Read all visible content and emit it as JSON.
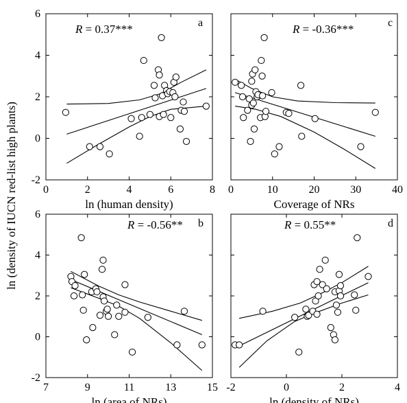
{
  "figure": {
    "ylabel": "ln (density of IUCN red-list high plants)"
  },
  "chart_data": [
    {
      "type": "scatter",
      "letter": "a",
      "r_label": "R",
      "r_value": " = 0.37***",
      "xlabel": "ln (human density)",
      "xlim": [
        0,
        8
      ],
      "ylim": [
        -2,
        6
      ],
      "xticks": [
        0,
        2,
        4,
        6,
        8
      ],
      "yticks": [
        -2,
        0,
        2,
        4,
        6
      ],
      "x_tick_labels": [
        "0",
        "2",
        "4",
        "6",
        "8"
      ],
      "y_tick_labels": [
        "-2",
        "0",
        "2",
        "4",
        "6"
      ],
      "points": [
        {
          "x": 0.95,
          "y": 1.25
        },
        {
          "x": 2.1,
          "y": -0.4
        },
        {
          "x": 2.6,
          "y": -0.4
        },
        {
          "x": 3.05,
          "y": -0.75
        },
        {
          "x": 4.1,
          "y": 0.95
        },
        {
          "x": 4.5,
          "y": 0.1
        },
        {
          "x": 4.6,
          "y": 1.0
        },
        {
          "x": 4.7,
          "y": 3.75
        },
        {
          "x": 5.0,
          "y": 1.15
        },
        {
          "x": 5.2,
          "y": 2.55
        },
        {
          "x": 5.25,
          "y": 1.95
        },
        {
          "x": 5.4,
          "y": 3.3
        },
        {
          "x": 5.45,
          "y": 3.05
        },
        {
          "x": 5.45,
          "y": 1.05
        },
        {
          "x": 5.55,
          "y": 4.85
        },
        {
          "x": 5.6,
          "y": 2.05
        },
        {
          "x": 5.65,
          "y": 1.15
        },
        {
          "x": 5.7,
          "y": 2.55
        },
        {
          "x": 5.8,
          "y": 2.3
        },
        {
          "x": 5.85,
          "y": 2.15
        },
        {
          "x": 5.95,
          "y": 2.25
        },
        {
          "x": 6.0,
          "y": 1.0
        },
        {
          "x": 6.1,
          "y": 2.2
        },
        {
          "x": 6.15,
          "y": 2.7
        },
        {
          "x": 6.2,
          "y": 2.0
        },
        {
          "x": 6.25,
          "y": 2.95
        },
        {
          "x": 6.45,
          "y": 0.45
        },
        {
          "x": 6.5,
          "y": 1.35
        },
        {
          "x": 6.6,
          "y": 1.75
        },
        {
          "x": 6.65,
          "y": 1.3
        },
        {
          "x": 6.75,
          "y": -0.15
        },
        {
          "x": 7.7,
          "y": 1.55
        }
      ],
      "fit": [
        {
          "x": 1.0,
          "y": 0.2
        },
        {
          "x": 7.7,
          "y": 2.4
        }
      ],
      "ci_upper": [
        {
          "x": 1.0,
          "y": 1.65
        },
        {
          "x": 3.0,
          "y": 1.68
        },
        {
          "x": 4.5,
          "y": 1.85
        },
        {
          "x": 5.5,
          "y": 2.15
        },
        {
          "x": 6.5,
          "y": 2.7
        },
        {
          "x": 7.7,
          "y": 3.3
        }
      ],
      "ci_lower": [
        {
          "x": 1.0,
          "y": -1.2
        },
        {
          "x": 2.5,
          "y": -0.3
        },
        {
          "x": 4.0,
          "y": 0.55
        },
        {
          "x": 5.0,
          "y": 1.05
        },
        {
          "x": 6.0,
          "y": 1.4
        },
        {
          "x": 7.7,
          "y": 1.55
        }
      ]
    },
    {
      "type": "scatter",
      "letter": "c",
      "r_label": "R",
      "r_value": " = -0.36***",
      "xlabel": "Coverage of NRs",
      "xlim": [
        0,
        40
      ],
      "ylim": [
        -2,
        6
      ],
      "xticks": [
        0,
        10,
        20,
        30,
        40
      ],
      "yticks": [
        -2,
        0,
        2,
        4,
        6
      ],
      "x_tick_labels": [
        "0",
        "10",
        "20",
        "30",
        "40"
      ],
      "y_tick_labels": [],
      "points": [
        {
          "x": 1.0,
          "y": 2.7
        },
        {
          "x": 2.5,
          "y": 2.55
        },
        {
          "x": 2.8,
          "y": 2.0
        },
        {
          "x": 3.0,
          "y": 1.0
        },
        {
          "x": 4.0,
          "y": 1.35
        },
        {
          "x": 4.4,
          "y": 1.9
        },
        {
          "x": 4.7,
          "y": -0.15
        },
        {
          "x": 5.0,
          "y": 1.6
        },
        {
          "x": 5.0,
          "y": 2.75
        },
        {
          "x": 5.2,
          "y": 3.1
        },
        {
          "x": 5.4,
          "y": 1.7
        },
        {
          "x": 5.6,
          "y": 0.45
        },
        {
          "x": 5.8,
          "y": 3.3
        },
        {
          "x": 6.0,
          "y": 2.25
        },
        {
          "x": 6.3,
          "y": 2.0
        },
        {
          "x": 6.5,
          "y": 2.1
        },
        {
          "x": 7.1,
          "y": 1.0
        },
        {
          "x": 7.3,
          "y": 3.75
        },
        {
          "x": 7.5,
          "y": 3.0
        },
        {
          "x": 7.6,
          "y": 2.05
        },
        {
          "x": 8.0,
          "y": 4.85
        },
        {
          "x": 8.2,
          "y": 1.05
        },
        {
          "x": 8.4,
          "y": 1.3
        },
        {
          "x": 9.8,
          "y": 2.2
        },
        {
          "x": 10.5,
          "y": -0.75
        },
        {
          "x": 11.6,
          "y": -0.4
        },
        {
          "x": 13.3,
          "y": 1.25
        },
        {
          "x": 13.9,
          "y": 1.2
        },
        {
          "x": 16.8,
          "y": 2.55
        },
        {
          "x": 17.0,
          "y": 0.1
        },
        {
          "x": 20.2,
          "y": 0.95
        },
        {
          "x": 31.2,
          "y": -0.4
        },
        {
          "x": 34.7,
          "y": 1.25
        }
      ],
      "fit": [
        {
          "x": 1.0,
          "y": 2.2
        },
        {
          "x": 34.7,
          "y": 0.1
        }
      ],
      "ci_upper": [
        {
          "x": 1.0,
          "y": 2.85
        },
        {
          "x": 5.0,
          "y": 2.4
        },
        {
          "x": 10.0,
          "y": 2.0
        },
        {
          "x": 16.0,
          "y": 1.8
        },
        {
          "x": 25.0,
          "y": 1.72
        },
        {
          "x": 34.7,
          "y": 1.7
        }
      ],
      "ci_lower": [
        {
          "x": 1.0,
          "y": 1.55
        },
        {
          "x": 6.0,
          "y": 1.4
        },
        {
          "x": 12.0,
          "y": 1.05
        },
        {
          "x": 20.0,
          "y": 0.3
        },
        {
          "x": 27.0,
          "y": -0.5
        },
        {
          "x": 34.7,
          "y": -1.45
        }
      ]
    },
    {
      "type": "scatter",
      "letter": "b",
      "r_label": "R",
      "r_value": " = -0.56**",
      "xlabel": "ln (area of NRs)",
      "xlim": [
        7,
        15
      ],
      "ylim": [
        -2,
        6
      ],
      "xticks": [
        7,
        9,
        11,
        13,
        15
      ],
      "yticks": [
        -2,
        0,
        2,
        4,
        6
      ],
      "x_tick_labels": [
        "7",
        "9",
        "11",
        "13",
        "15"
      ],
      "y_tick_labels": [
        "-2",
        "0",
        "2",
        "4",
        "6"
      ],
      "points": [
        {
          "x": 8.2,
          "y": 2.95
        },
        {
          "x": 8.25,
          "y": 2.7
        },
        {
          "x": 8.35,
          "y": 2.0
        },
        {
          "x": 8.4,
          "y": 2.5
        },
        {
          "x": 8.7,
          "y": 4.85
        },
        {
          "x": 8.75,
          "y": 2.05
        },
        {
          "x": 8.8,
          "y": 1.3
        },
        {
          "x": 8.85,
          "y": 3.05
        },
        {
          "x": 8.95,
          "y": -0.15
        },
        {
          "x": 9.2,
          "y": 2.2
        },
        {
          "x": 9.25,
          "y": 0.45
        },
        {
          "x": 9.4,
          "y": 2.35
        },
        {
          "x": 9.45,
          "y": 2.2
        },
        {
          "x": 9.6,
          "y": 1.05
        },
        {
          "x": 9.7,
          "y": 3.3
        },
        {
          "x": 9.75,
          "y": 3.75
        },
        {
          "x": 9.75,
          "y": 1.95
        },
        {
          "x": 9.8,
          "y": 1.75
        },
        {
          "x": 9.9,
          "y": 1.25
        },
        {
          "x": 9.95,
          "y": 1.35
        },
        {
          "x": 10.0,
          "y": 1.0
        },
        {
          "x": 10.3,
          "y": 0.1
        },
        {
          "x": 10.4,
          "y": 1.55
        },
        {
          "x": 10.5,
          "y": 1.0
        },
        {
          "x": 10.8,
          "y": 2.55
        },
        {
          "x": 10.8,
          "y": 1.2
        },
        {
          "x": 11.15,
          "y": -0.75
        },
        {
          "x": 11.9,
          "y": 0.95
        },
        {
          "x": 13.3,
          "y": -0.4
        },
        {
          "x": 13.65,
          "y": 1.25
        },
        {
          "x": 14.5,
          "y": -0.4
        }
      ],
      "fit": [
        {
          "x": 8.2,
          "y": 2.8
        },
        {
          "x": 14.5,
          "y": 0.1
        }
      ],
      "ci_upper": [
        {
          "x": 8.2,
          "y": 3.2
        },
        {
          "x": 9.5,
          "y": 2.5
        },
        {
          "x": 10.5,
          "y": 2.05
        },
        {
          "x": 11.5,
          "y": 1.7
        },
        {
          "x": 13.0,
          "y": 1.25
        },
        {
          "x": 14.5,
          "y": 0.8
        }
      ],
      "ci_lower": [
        {
          "x": 8.2,
          "y": 2.4
        },
        {
          "x": 9.5,
          "y": 1.9
        },
        {
          "x": 10.5,
          "y": 1.5
        },
        {
          "x": 11.5,
          "y": 0.9
        },
        {
          "x": 13.0,
          "y": -0.3
        },
        {
          "x": 14.5,
          "y": -1.65
        }
      ]
    },
    {
      "type": "scatter",
      "letter": "d",
      "r_label": "R",
      "r_value": " = 0.55**",
      "xlabel": "ln (density of NRs)",
      "xlim": [
        -2,
        4
      ],
      "ylim": [
        -2,
        6
      ],
      "xticks": [
        -2,
        0,
        2,
        4
      ],
      "yticks": [
        -2,
        0,
        2,
        4,
        6
      ],
      "x_tick_labels": [
        "-2",
        "0",
        "2",
        "4"
      ],
      "y_tick_labels": [],
      "points": [
        {
          "x": -1.85,
          "y": -0.4
        },
        {
          "x": -1.7,
          "y": -0.4
        },
        {
          "x": -0.85,
          "y": 1.25
        },
        {
          "x": 0.3,
          "y": 0.95
        },
        {
          "x": 0.45,
          "y": -0.75
        },
        {
          "x": 0.7,
          "y": 1.35
        },
        {
          "x": 0.75,
          "y": 1.0
        },
        {
          "x": 0.8,
          "y": 1.05
        },
        {
          "x": 0.95,
          "y": 1.25
        },
        {
          "x": 1.0,
          "y": 2.55
        },
        {
          "x": 1.05,
          "y": 1.75
        },
        {
          "x": 1.1,
          "y": 2.7
        },
        {
          "x": 1.1,
          "y": 1.1
        },
        {
          "x": 1.15,
          "y": 2.0
        },
        {
          "x": 1.2,
          "y": 3.3
        },
        {
          "x": 1.3,
          "y": 2.55
        },
        {
          "x": 1.4,
          "y": 3.75
        },
        {
          "x": 1.45,
          "y": 2.35
        },
        {
          "x": 1.6,
          "y": 0.45
        },
        {
          "x": 1.7,
          "y": 0.1
        },
        {
          "x": 1.75,
          "y": 2.2
        },
        {
          "x": 1.75,
          "y": -0.15
        },
        {
          "x": 1.8,
          "y": 1.55
        },
        {
          "x": 1.85,
          "y": 1.2
        },
        {
          "x": 1.9,
          "y": 2.25
        },
        {
          "x": 1.9,
          "y": 3.05
        },
        {
          "x": 1.95,
          "y": 2.0
        },
        {
          "x": 1.95,
          "y": 2.5
        },
        {
          "x": 2.45,
          "y": 2.05
        },
        {
          "x": 2.5,
          "y": 1.3
        },
        {
          "x": 2.55,
          "y": 4.85
        },
        {
          "x": 2.95,
          "y": 2.95
        }
      ],
      "fit": [
        {
          "x": -1.7,
          "y": -0.45
        },
        {
          "x": 2.95,
          "y": 2.65
        }
      ],
      "ci_upper": [
        {
          "x": -1.7,
          "y": 0.9
        },
        {
          "x": -0.5,
          "y": 1.25
        },
        {
          "x": 0.5,
          "y": 1.65
        },
        {
          "x": 1.3,
          "y": 2.15
        },
        {
          "x": 2.0,
          "y": 2.65
        },
        {
          "x": 2.95,
          "y": 3.45
        }
      ],
      "ci_lower": [
        {
          "x": -1.7,
          "y": -1.5
        },
        {
          "x": -0.7,
          "y": -0.2
        },
        {
          "x": 0.3,
          "y": 0.75
        },
        {
          "x": 1.0,
          "y": 1.15
        },
        {
          "x": 2.0,
          "y": 1.65
        },
        {
          "x": 2.95,
          "y": 2.05
        }
      ]
    }
  ]
}
